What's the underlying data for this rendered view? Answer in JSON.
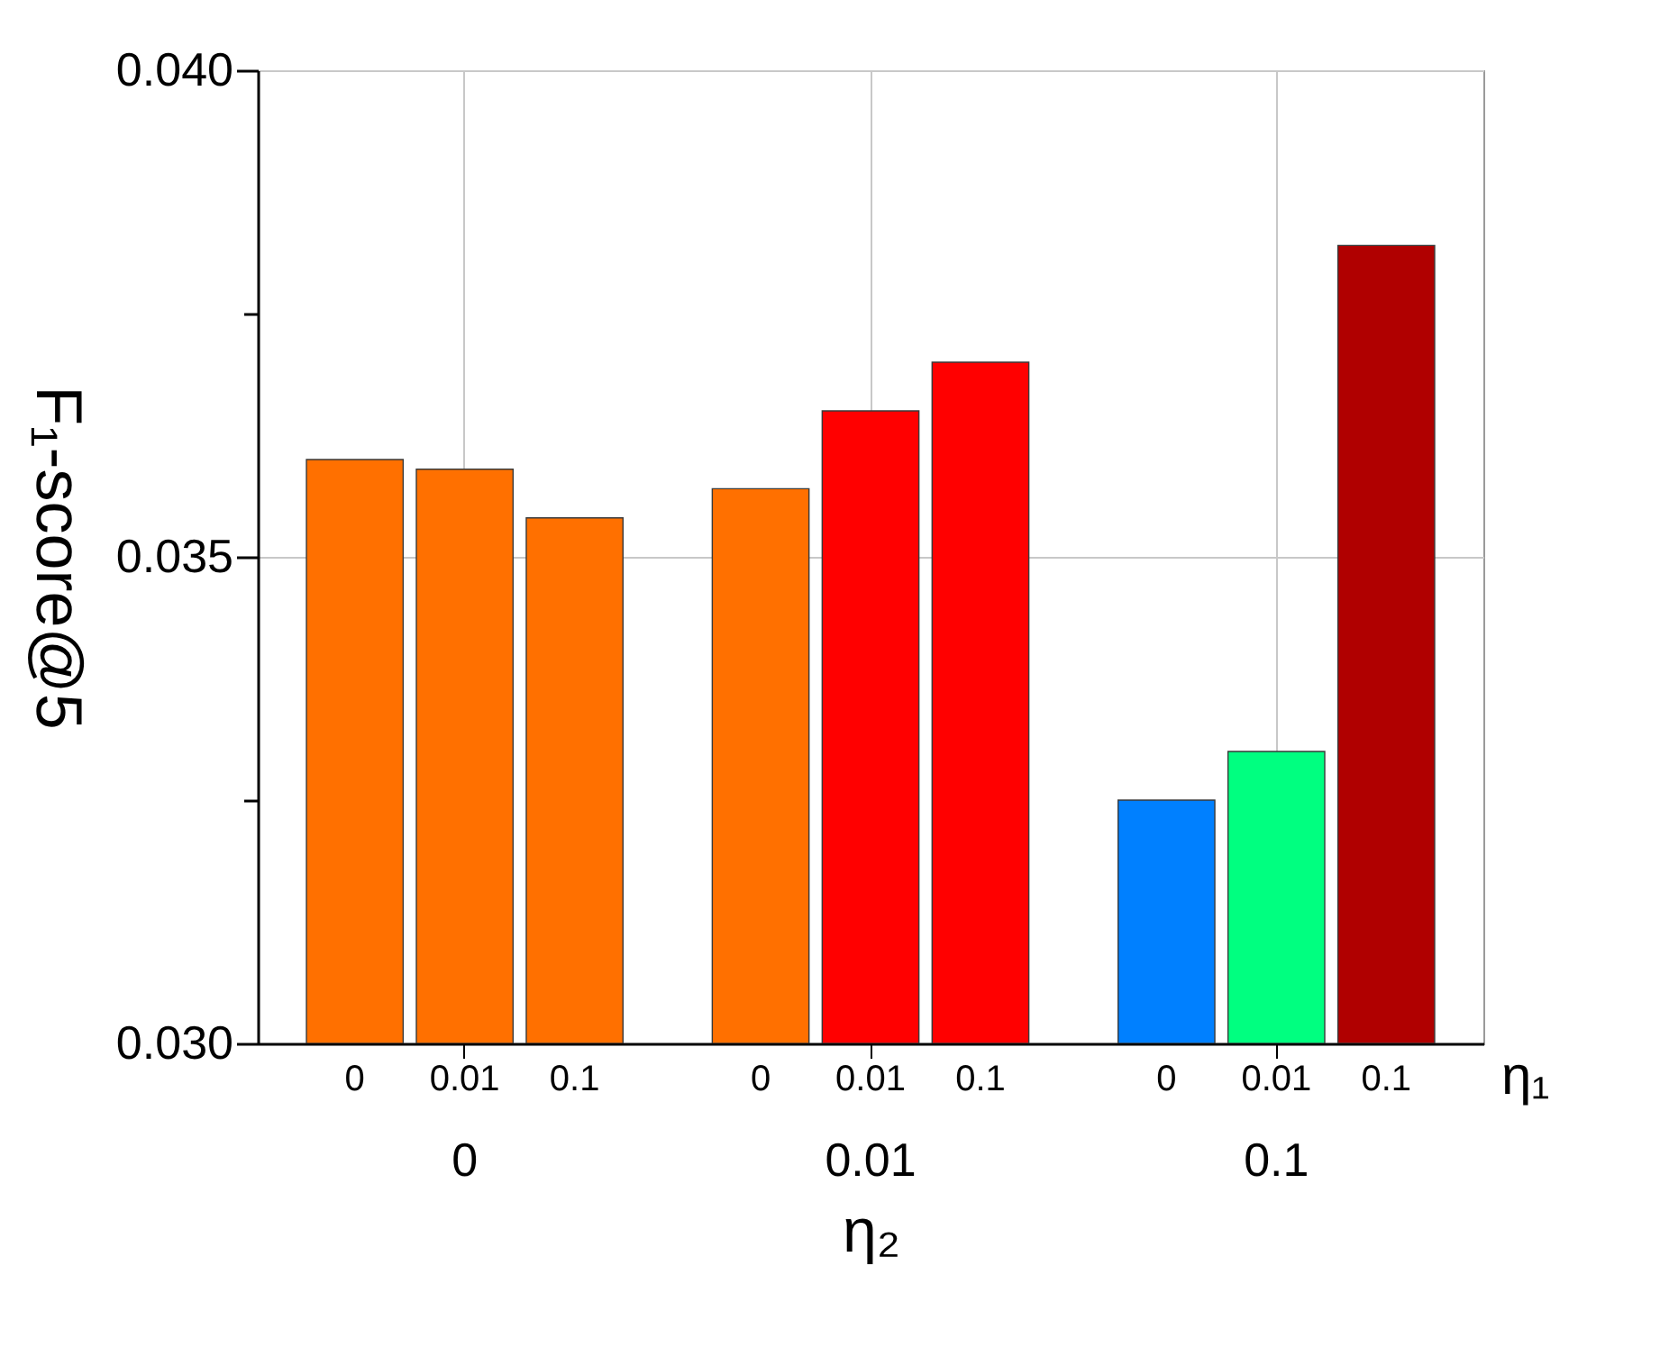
{
  "chart_data": {
    "type": "bar",
    "ylabel": "F₁-score@5",
    "xlabel": "η₂",
    "legend_title": "η₁",
    "categories": [
      "0",
      "0.01",
      "0.1"
    ],
    "series": [
      {
        "name": "0",
        "values": [
          0.036,
          0.0357,
          0.0325
        ],
        "colors": [
          "#ff7000",
          "#ff7000",
          "#0080ff"
        ]
      },
      {
        "name": "0.01",
        "values": [
          0.0359,
          0.0365,
          0.033
        ],
        "colors": [
          "#ff7000",
          "#ff0000",
          "#00ff80"
        ]
      },
      {
        "name": "0.1",
        "values": [
          0.0354,
          0.037,
          0.0382
        ],
        "colors": [
          "#ff7000",
          "#ff0000",
          "#b00000"
        ]
      }
    ],
    "ylim": [
      0.03,
      0.04
    ],
    "yticks": [
      {
        "value": 0.03,
        "label": "0.030"
      },
      {
        "value": 0.0325,
        "label": null
      },
      {
        "value": 0.035,
        "label": "0.035"
      },
      {
        "value": 0.0375,
        "label": null
      },
      {
        "value": 0.04,
        "label": "0.040"
      }
    ],
    "grid": true
  }
}
